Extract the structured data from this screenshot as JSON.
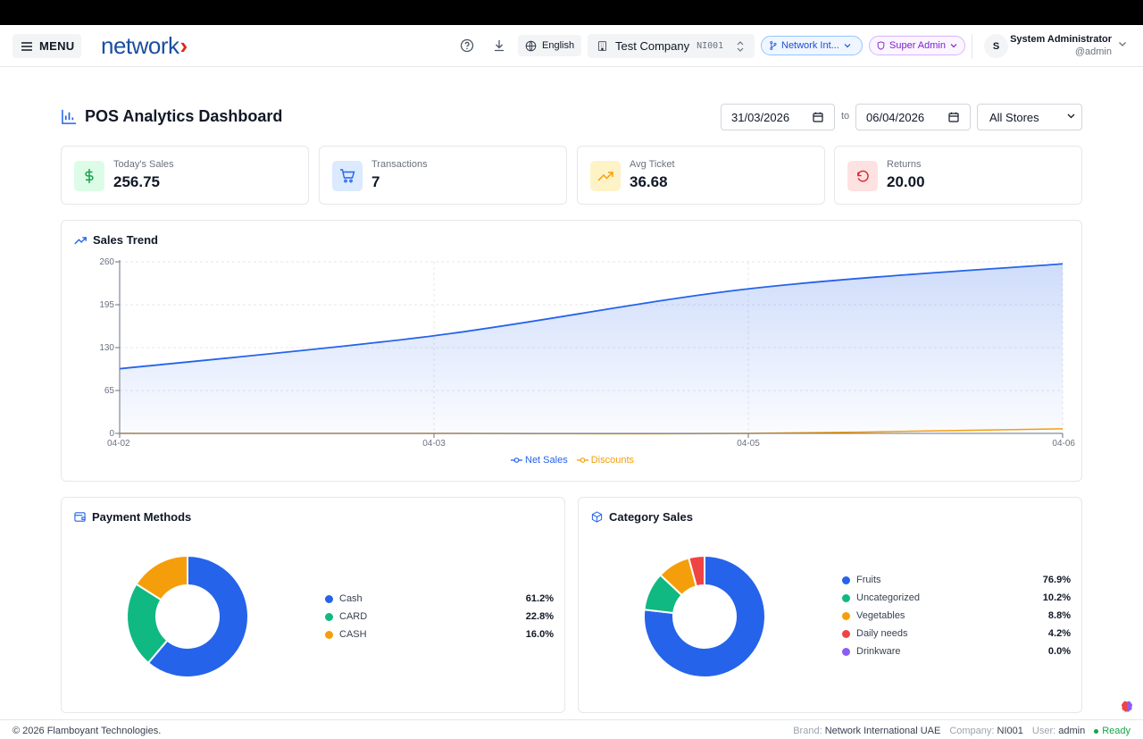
{
  "header": {
    "menu_label": "MENU",
    "logo_text": "network",
    "language": "English",
    "company_name": "Test Company",
    "company_code": "NI001",
    "network_pill": "Network Int...",
    "role_pill": "Super Admin",
    "avatar_initial": "S",
    "user_name": "System Administrator",
    "user_handle": "@admin"
  },
  "page": {
    "title": "POS Analytics Dashboard",
    "date_from": "31/03/2026",
    "date_to": "06/04/2026",
    "to_label": "to",
    "store_filter": "All Stores"
  },
  "kpis": [
    {
      "label": "Today's Sales",
      "value": "256.75",
      "icon": "dollar-icon",
      "color": "#16a34a",
      "bg": "#dcfce7"
    },
    {
      "label": "Transactions",
      "value": "7",
      "icon": "cart-icon",
      "color": "#2563eb",
      "bg": "#dbeafe"
    },
    {
      "label": "Avg Ticket",
      "value": "36.68",
      "icon": "trending-up-icon",
      "color": "#f59e0b",
      "bg": "#fef3c7"
    },
    {
      "label": "Returns",
      "value": "20.00",
      "icon": "rotate-ccw-icon",
      "color": "#dc2626",
      "bg": "#fee2e2"
    }
  ],
  "sales_trend": {
    "title": "Sales Trend",
    "legend": [
      "Net Sales",
      "Discounts"
    ]
  },
  "payment_methods": {
    "title": "Payment Methods",
    "items": [
      {
        "label": "Cash",
        "pct": "61.2%",
        "color": "#2563eb"
      },
      {
        "label": "CARD",
        "pct": "22.8%",
        "color": "#10b981"
      },
      {
        "label": "CASH",
        "pct": "16.0%",
        "color": "#f59e0b"
      }
    ]
  },
  "category_sales": {
    "title": "Category Sales",
    "items": [
      {
        "label": "Fruits",
        "pct": "76.9%",
        "color": "#2563eb"
      },
      {
        "label": "Uncategorized",
        "pct": "10.2%",
        "color": "#10b981"
      },
      {
        "label": "Vegetables",
        "pct": "8.8%",
        "color": "#f59e0b"
      },
      {
        "label": "Daily needs",
        "pct": "4.2%",
        "color": "#ef4444"
      },
      {
        "label": "Drinkware",
        "pct": "0.0%",
        "color": "#8b5cf6"
      }
    ]
  },
  "chart_data": [
    {
      "type": "area",
      "title": "Sales Trend",
      "x": [
        "04-02",
        "04-03",
        "04-05",
        "04-06"
      ],
      "ylim": [
        0,
        260
      ],
      "yticks": [
        0,
        65,
        130,
        195,
        260
      ],
      "grid": true,
      "legend": "bottom",
      "series": [
        {
          "name": "Net Sales",
          "values": [
            98,
            148,
            219,
            257
          ],
          "color": "#2563eb"
        },
        {
          "name": "Discounts",
          "values": [
            0,
            0,
            0,
            7
          ],
          "color": "#f59e0b"
        }
      ]
    },
    {
      "type": "pie",
      "title": "Payment Methods",
      "categories": [
        "Cash",
        "CARD",
        "CASH"
      ],
      "values": [
        61.2,
        22.8,
        16.0
      ],
      "colors": [
        "#2563eb",
        "#10b981",
        "#f59e0b"
      ]
    },
    {
      "type": "pie",
      "title": "Category Sales",
      "categories": [
        "Fruits",
        "Uncategorized",
        "Vegetables",
        "Daily needs",
        "Drinkware"
      ],
      "values": [
        76.9,
        10.2,
        8.8,
        4.2,
        0.0
      ],
      "colors": [
        "#2563eb",
        "#10b981",
        "#f59e0b",
        "#ef4444",
        "#8b5cf6"
      ]
    }
  ],
  "footer": {
    "copyright": "© 2026 Flamboyant Technologies.",
    "brand_label": "Brand:",
    "brand_value": "Network International UAE",
    "company_label": "Company:",
    "company_value": "NI001",
    "user_label": "User:",
    "user_value": "admin",
    "status": "Ready"
  }
}
